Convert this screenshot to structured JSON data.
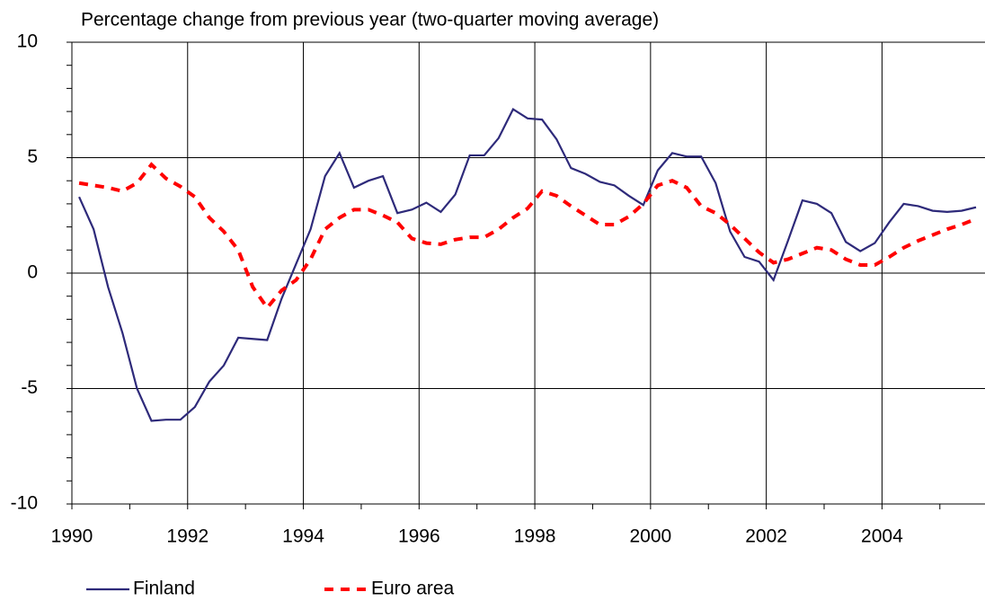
{
  "chart_data": {
    "type": "line",
    "title": "Percentage change from previous year (two-quarter moving average)",
    "x": [
      1990.125,
      1990.375,
      1990.625,
      1990.875,
      1991.125,
      1991.375,
      1991.625,
      1991.875,
      1992.125,
      1992.375,
      1992.625,
      1992.875,
      1993.125,
      1993.375,
      1993.625,
      1993.875,
      1994.125,
      1994.375,
      1994.625,
      1994.875,
      1995.125,
      1995.375,
      1995.625,
      1995.875,
      1996.125,
      1996.375,
      1996.625,
      1996.875,
      1997.125,
      1997.375,
      1997.625,
      1997.875,
      1998.125,
      1998.375,
      1998.625,
      1998.875,
      1999.125,
      1999.375,
      1999.625,
      1999.875,
      2000.125,
      2000.375,
      2000.625,
      2000.875,
      2001.125,
      2001.375,
      2001.625,
      2001.875,
      2002.125,
      2002.375,
      2002.625,
      2002.875,
      2003.125,
      2003.375,
      2003.625,
      2003.875,
      2004.125,
      2004.375,
      2004.625,
      2004.875,
      2005.125,
      2005.375,
      2005.625
    ],
    "series": [
      {
        "name": "Finland",
        "color": "#2e2a7a",
        "dash": false,
        "values": [
          3.3,
          1.9,
          -0.6,
          -2.6,
          -5.0,
          -6.4,
          -6.35,
          -6.35,
          -5.8,
          -4.7,
          -4.0,
          -2.8,
          -2.85,
          -2.9,
          -1.1,
          0.4,
          1.9,
          4.2,
          5.2,
          3.7,
          4.0,
          4.2,
          2.6,
          2.75,
          3.05,
          2.65,
          3.4,
          5.1,
          5.1,
          5.85,
          7.1,
          6.7,
          6.65,
          5.8,
          4.55,
          4.3,
          3.95,
          3.8,
          3.35,
          2.95,
          4.45,
          5.2,
          5.05,
          5.05,
          3.9,
          1.8,
          0.7,
          0.5,
          -0.3,
          1.4,
          3.15,
          3.0,
          2.6,
          1.35,
          0.95,
          1.3,
          2.2,
          3.0,
          2.9,
          2.7,
          2.65,
          2.7,
          2.85
        ]
      },
      {
        "name": "Euro area",
        "color": "#ff0000",
        "dash": true,
        "values": [
          3.9,
          3.8,
          3.7,
          3.55,
          3.9,
          4.7,
          4.1,
          3.75,
          3.3,
          2.4,
          1.8,
          1.0,
          -0.6,
          -1.5,
          -0.75,
          -0.3,
          0.6,
          1.9,
          2.4,
          2.75,
          2.75,
          2.5,
          2.2,
          1.5,
          1.3,
          1.25,
          1.45,
          1.55,
          1.55,
          1.9,
          2.4,
          2.8,
          3.55,
          3.35,
          2.9,
          2.5,
          2.1,
          2.1,
          2.45,
          3.0,
          3.8,
          4.0,
          3.7,
          2.9,
          2.6,
          2.1,
          1.5,
          0.9,
          0.45,
          0.6,
          0.85,
          1.1,
          1.0,
          0.6,
          0.35,
          0.35,
          0.7,
          1.1,
          1.4,
          1.65,
          1.9,
          2.1,
          2.35
        ]
      }
    ],
    "xlim": [
      1990,
      2005.78
    ],
    "xticks": [
      1990,
      1992,
      1994,
      1996,
      1998,
      2000,
      2002,
      2004
    ],
    "ylim": [
      -10,
      10
    ],
    "yticks": [
      -10,
      -5,
      0,
      5,
      10
    ],
    "grid": true,
    "legend": "bottom-left"
  }
}
